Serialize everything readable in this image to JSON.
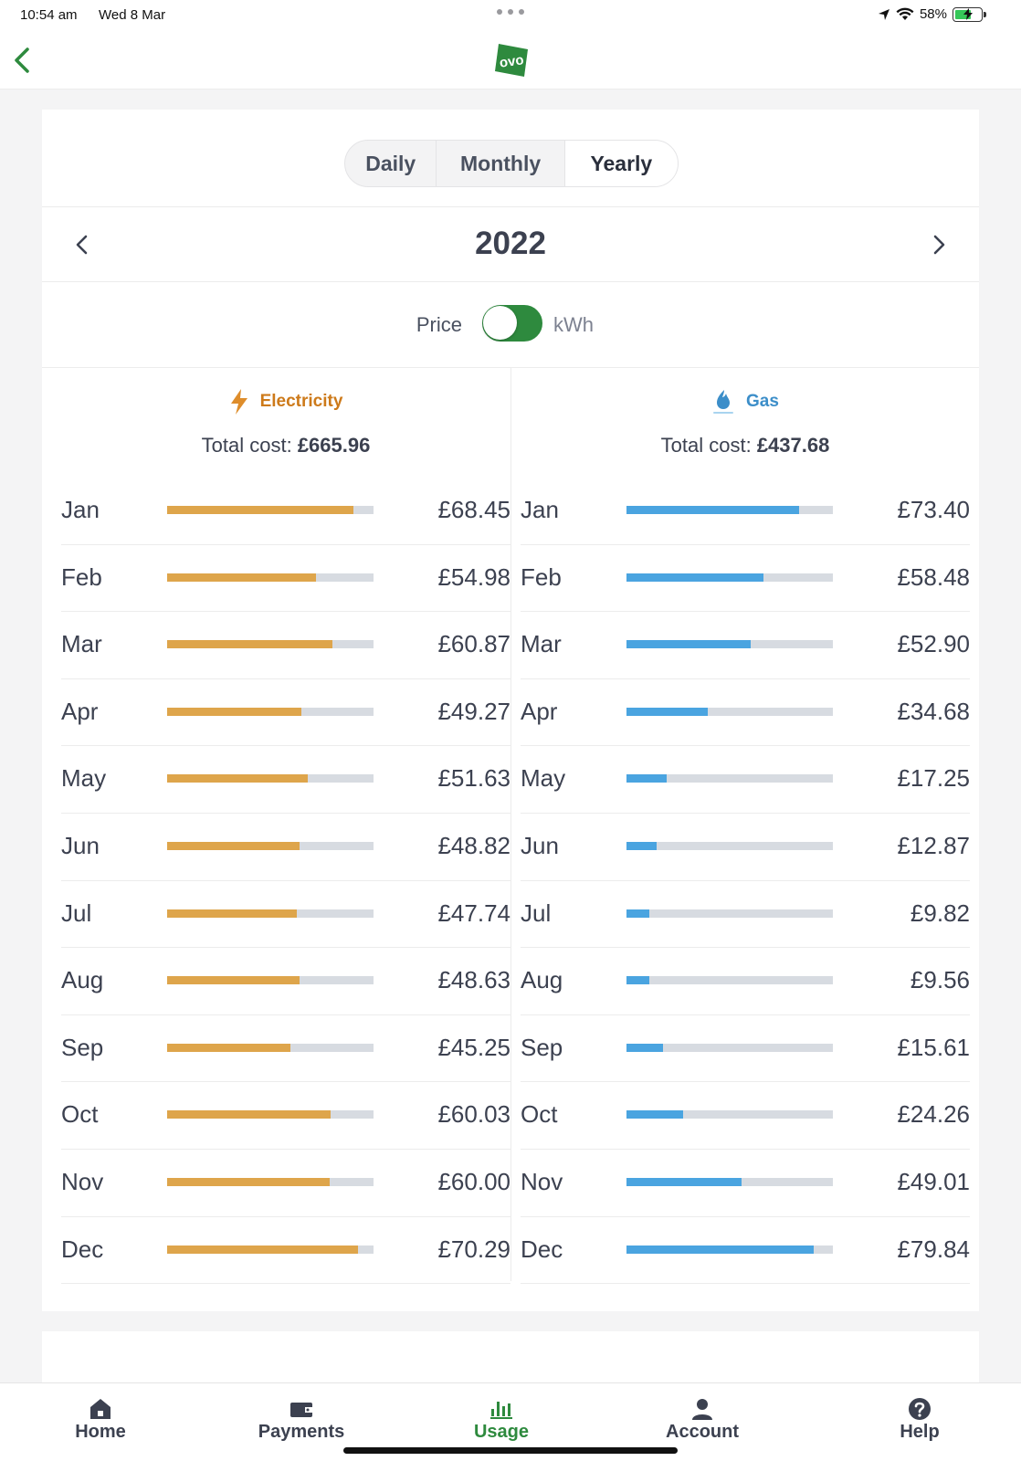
{
  "status_bar": {
    "time": "10:54 am",
    "date": "Wed 8 Mar",
    "battery": "58%"
  },
  "colors": {
    "brand": "#2e8a3e",
    "electricity": "#dea54b",
    "gas": "#4aa4e0",
    "electricity_label": "#cd7a1a",
    "gas_label": "#3c8ec9"
  },
  "period_tabs": [
    {
      "label": "Daily",
      "active": false
    },
    {
      "label": "Monthly",
      "active": false
    },
    {
      "label": "Yearly",
      "active": true
    }
  ],
  "year": "2022",
  "toggle": {
    "left_label": "Price",
    "right_label": "kWh",
    "state": "kWh"
  },
  "electricity": {
    "title": "Electricity",
    "icon": "lightning-bolt-icon",
    "total_label": "Total cost: ",
    "total_value": "£665.96",
    "max_scale": 76.0,
    "rows": [
      {
        "month": "Jan",
        "value": "£68.45",
        "amount": 68.45
      },
      {
        "month": "Feb",
        "value": "£54.98",
        "amount": 54.98
      },
      {
        "month": "Mar",
        "value": "£60.87",
        "amount": 60.87
      },
      {
        "month": "Apr",
        "value": "£49.27",
        "amount": 49.27
      },
      {
        "month": "May",
        "value": "£51.63",
        "amount": 51.63
      },
      {
        "month": "Jun",
        "value": "£48.82",
        "amount": 48.82
      },
      {
        "month": "Jul",
        "value": "£47.74",
        "amount": 47.74
      },
      {
        "month": "Aug",
        "value": "£48.63",
        "amount": 48.63
      },
      {
        "month": "Sep",
        "value": "£45.25",
        "amount": 45.25
      },
      {
        "month": "Oct",
        "value": "£60.03",
        "amount": 60.03
      },
      {
        "month": "Nov",
        "value": "£60.00",
        "amount": 60.0
      },
      {
        "month": "Dec",
        "value": "£70.29",
        "amount": 70.29
      }
    ]
  },
  "gas": {
    "title": "Gas",
    "icon": "gas-flame-icon",
    "total_label": "Total cost: ",
    "total_value": "£437.68",
    "max_scale": 88.0,
    "rows": [
      {
        "month": "Jan",
        "value": "£73.40",
        "amount": 73.4
      },
      {
        "month": "Feb",
        "value": "£58.48",
        "amount": 58.48
      },
      {
        "month": "Mar",
        "value": "£52.90",
        "amount": 52.9
      },
      {
        "month": "Apr",
        "value": "£34.68",
        "amount": 34.68
      },
      {
        "month": "May",
        "value": "£17.25",
        "amount": 17.25
      },
      {
        "month": "Jun",
        "value": "£12.87",
        "amount": 12.87
      },
      {
        "month": "Jul",
        "value": "£9.82",
        "amount": 9.82
      },
      {
        "month": "Aug",
        "value": "£9.56",
        "amount": 9.56
      },
      {
        "month": "Sep",
        "value": "£15.61",
        "amount": 15.61
      },
      {
        "month": "Oct",
        "value": "£24.26",
        "amount": 24.26
      },
      {
        "month": "Nov",
        "value": "£49.01",
        "amount": 49.01
      },
      {
        "month": "Dec",
        "value": "£79.84",
        "amount": 79.84
      }
    ]
  },
  "tabs": [
    {
      "label": "Home",
      "icon": "home-icon",
      "active": false
    },
    {
      "label": "Payments",
      "icon": "wallet-icon",
      "active": false
    },
    {
      "label": "Usage",
      "icon": "usage-chart-icon",
      "active": true
    },
    {
      "label": "Account",
      "icon": "person-icon",
      "active": false
    },
    {
      "label": "Help",
      "icon": "help-icon",
      "active": false
    }
  ]
}
